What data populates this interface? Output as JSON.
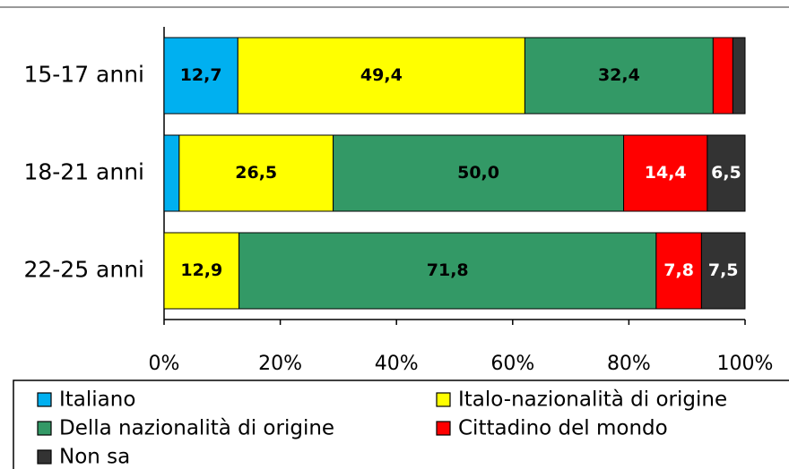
{
  "chart_data": {
    "type": "bar",
    "orientation": "horizontal",
    "stacked": true,
    "categories": [
      "15-17 anni",
      "18-21 anni",
      "22-25 anni"
    ],
    "series": [
      {
        "name": "Italiano",
        "color": "#00b0f0",
        "values": [
          12.7,
          2.6,
          0
        ],
        "value_labels": [
          "12,7",
          null,
          null
        ]
      },
      {
        "name": "Italo-nazionalità di origine",
        "color": "#ffff00",
        "values": [
          49.4,
          26.5,
          12.9
        ],
        "value_labels": [
          "49,4",
          "26,5",
          "12,9"
        ]
      },
      {
        "name": "Della nazionalità di origine",
        "color": "#339966",
        "values": [
          32.4,
          50.0,
          71.8
        ],
        "value_labels": [
          "32,4",
          "50,0",
          "71,8"
        ]
      },
      {
        "name": "Cittadino del mondo",
        "color": "#ff0000",
        "values": [
          3.4,
          14.4,
          7.8
        ],
        "value_labels": [
          null,
          "14,4",
          "7,8"
        ]
      },
      {
        "name": "Non sa",
        "color": "#333333",
        "values": [
          2.1,
          6.5,
          7.5
        ],
        "value_labels": [
          null,
          "6,5",
          "7,5"
        ]
      }
    ],
    "xlim": [
      0,
      100
    ],
    "xticks": [
      {
        "value": 0,
        "label": "0%"
      },
      {
        "value": 20,
        "label": "20%"
      },
      {
        "value": 40,
        "label": "40%"
      },
      {
        "value": 60,
        "label": "60%"
      },
      {
        "value": 80,
        "label": "80%"
      },
      {
        "value": 100,
        "label": "100%"
      }
    ],
    "legend": "bottom"
  }
}
